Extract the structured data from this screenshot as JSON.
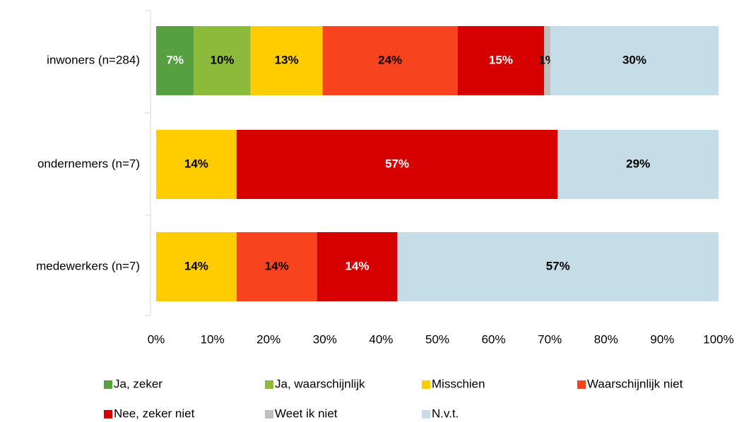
{
  "chart_data": {
    "type": "stacked_bar_horizontal",
    "categories": [
      "inwoners (n=284)",
      "ondernemers (n=7)",
      "medewerkers (n=7)"
    ],
    "xlim": [
      0,
      100
    ],
    "xticks": [
      {
        "value": 0,
        "label": "0%"
      },
      {
        "value": 10,
        "label": "10%"
      },
      {
        "value": 20,
        "label": "20%"
      },
      {
        "value": 30,
        "label": "30%"
      },
      {
        "value": 40,
        "label": "40%"
      },
      {
        "value": 50,
        "label": "50%"
      },
      {
        "value": 60,
        "label": "60%"
      },
      {
        "value": 70,
        "label": "70%"
      },
      {
        "value": 80,
        "label": "80%"
      },
      {
        "value": 90,
        "label": "90%"
      },
      {
        "value": 100,
        "label": "100%"
      }
    ],
    "series": [
      {
        "name": "Ja, zeker",
        "color": "#56a041",
        "label_color": "#ffffff",
        "values": [
          6.7,
          null,
          null
        ],
        "value_labels": [
          "7%",
          null,
          null
        ]
      },
      {
        "name": "Ja, waarschijnlijk",
        "color": "#8cbb3c",
        "label_color": "#000000",
        "values": [
          10.1,
          null,
          null
        ],
        "value_labels": [
          "10%",
          null,
          null
        ]
      },
      {
        "name": "Misschien",
        "color": "#ffcc00",
        "label_color": "#000000",
        "values": [
          12.8,
          14.3,
          14.3
        ],
        "value_labels": [
          "13%",
          "14%",
          "14%"
        ]
      },
      {
        "name": "Waarschijnlijk niet",
        "color": "#f7431e",
        "label_color": "#000000",
        "values": [
          24.0,
          null,
          14.3
        ],
        "value_labels": [
          "24%",
          null,
          "14%"
        ]
      },
      {
        "name": "Nee, zeker niet",
        "color": "#d60000",
        "label_color": "#ffffff",
        "values": [
          15.4,
          57.1,
          14.3
        ],
        "value_labels": [
          "15%",
          "57%",
          "14%"
        ]
      },
      {
        "name": "Weet ik niet",
        "color": "#bfbfbf",
        "label_color": "#000000",
        "values": [
          1.1,
          null,
          null
        ],
        "value_labels": [
          "1%",
          null,
          null
        ]
      },
      {
        "name": "N.v.t.",
        "color": "#c5dde6",
        "label_color": "#000000",
        "values": [
          29.9,
          28.6,
          57.1
        ],
        "value_labels": [
          "30%",
          "29%",
          "57%"
        ]
      }
    ]
  }
}
